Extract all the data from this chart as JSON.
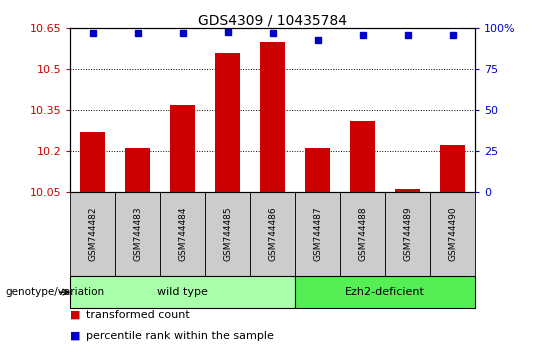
{
  "title": "GDS4309 / 10435784",
  "samples": [
    "GSM744482",
    "GSM744483",
    "GSM744484",
    "GSM744485",
    "GSM744486",
    "GSM744487",
    "GSM744488",
    "GSM744489",
    "GSM744490"
  ],
  "transformed_counts": [
    10.27,
    10.21,
    10.37,
    10.56,
    10.6,
    10.21,
    10.31,
    10.06,
    10.22
  ],
  "percentile_ranks": [
    97,
    97,
    97,
    98,
    97,
    93,
    96,
    96,
    96
  ],
  "ylim_left": [
    10.05,
    10.65
  ],
  "ylim_right": [
    0,
    100
  ],
  "yticks_left": [
    10.05,
    10.2,
    10.35,
    10.5,
    10.65
  ],
  "yticks_right": [
    0,
    25,
    50,
    75,
    100
  ],
  "ytick_labels_left": [
    "10.05",
    "10.2",
    "10.35",
    "10.5",
    "10.65"
  ],
  "ytick_labels_right": [
    "0",
    "25",
    "50",
    "75",
    "100%"
  ],
  "bar_color": "#cc0000",
  "dot_color": "#0000cc",
  "groups": [
    {
      "label": "wild type",
      "start": 0,
      "end": 4,
      "color": "#aaffaa"
    },
    {
      "label": "Ezh2-deficient",
      "start": 5,
      "end": 8,
      "color": "#55ee55"
    }
  ],
  "group_label": "genotype/variation",
  "legend_bar_label": "transformed count",
  "legend_dot_label": "percentile rank within the sample",
  "background_color": "#ffffff",
  "tick_label_color_left": "#cc0000",
  "tick_label_color_right": "#0000cc",
  "grid_color": "#000000",
  "sample_bg_color": "#cccccc",
  "bar_width": 0.55
}
